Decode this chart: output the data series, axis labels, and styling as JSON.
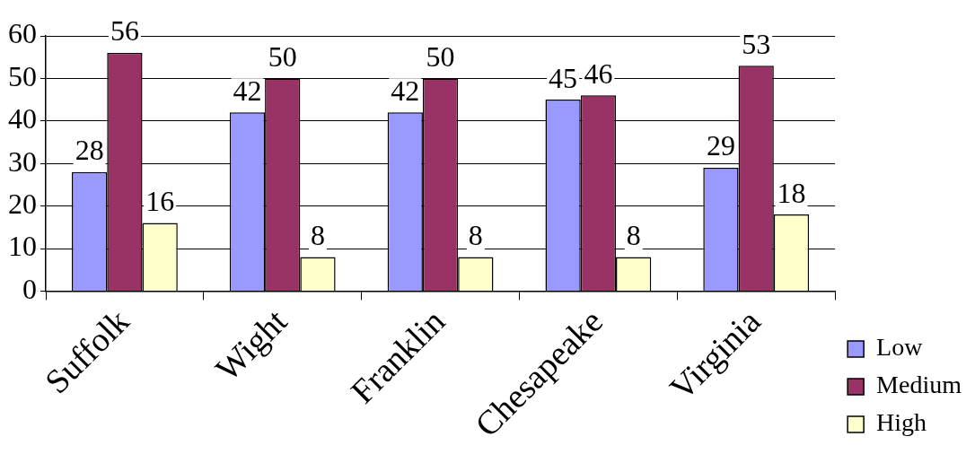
{
  "chart_data": {
    "type": "bar",
    "categories": [
      "Suffolk",
      "Wight",
      "Franklin",
      "Chesapeake",
      "Virginia"
    ],
    "series": [
      {
        "name": "Low",
        "color": "#9999ff",
        "values": [
          28,
          42,
          42,
          45,
          29
        ]
      },
      {
        "name": "Medium",
        "color": "#993366",
        "values": [
          56,
          50,
          50,
          46,
          53
        ]
      },
      {
        "name": "High",
        "color": "#ffffcc",
        "values": [
          16,
          8,
          8,
          8,
          18
        ]
      }
    ],
    "ylim": [
      0,
      60
    ],
    "yticks": [
      0,
      10,
      20,
      30,
      40,
      50,
      60
    ],
    "grid": "y",
    "legend": "bottom right",
    "data_labels": true
  }
}
